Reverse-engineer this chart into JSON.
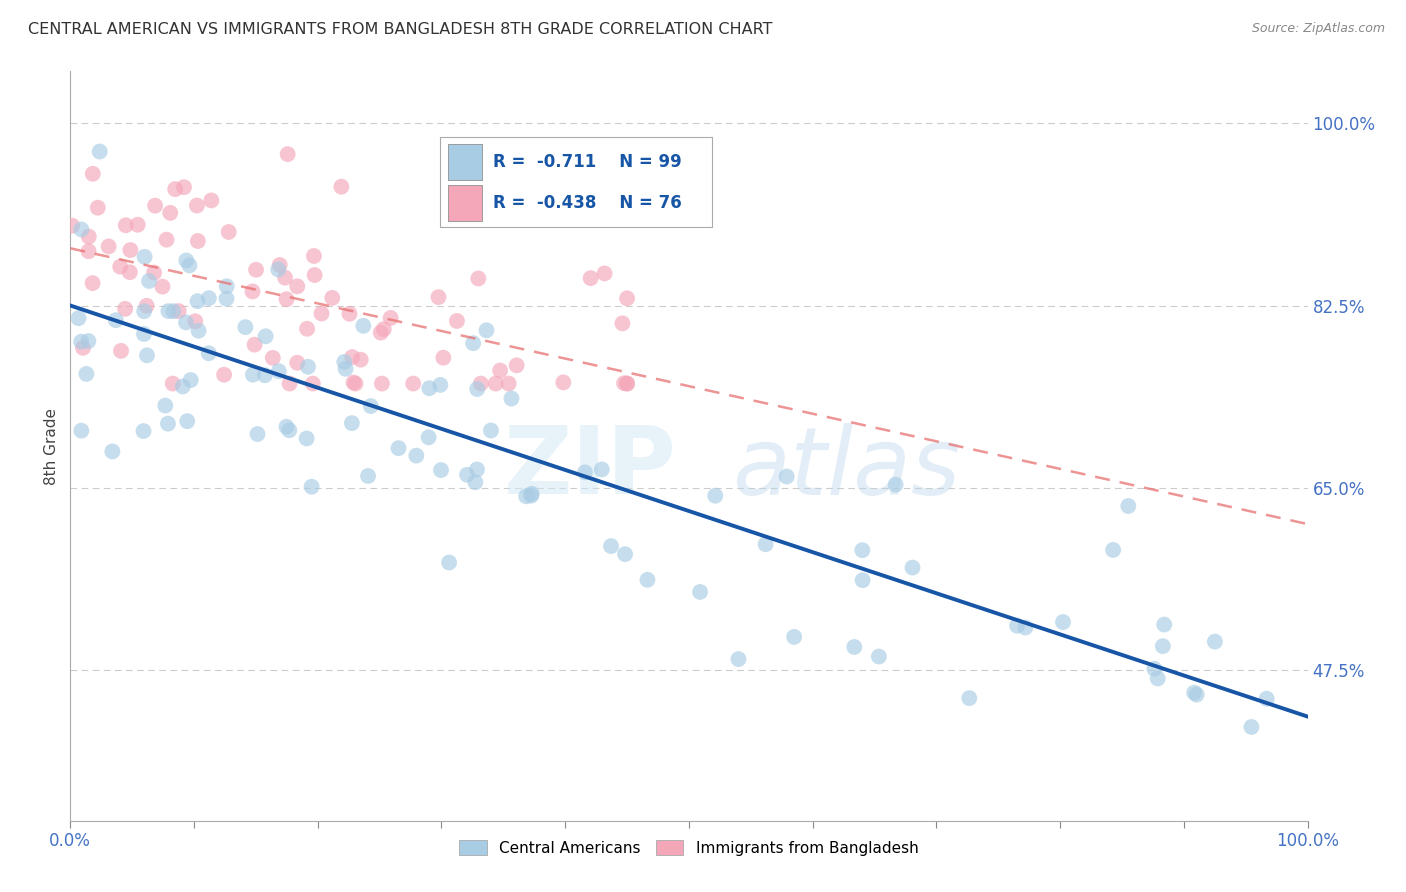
{
  "title": "CENTRAL AMERICAN VS IMMIGRANTS FROM BANGLADESH 8TH GRADE CORRELATION CHART",
  "source": "Source: ZipAtlas.com",
  "ylabel": "8th Grade",
  "watermark": "ZIPatlas",
  "legend_R_blue": "-0.711",
  "legend_N_blue": "99",
  "legend_R_pink": "-0.438",
  "legend_N_pink": "76",
  "blue_color": "#a8cce4",
  "pink_color": "#f4a7b9",
  "line_blue": "#1755a6",
  "line_pink": "#e87070",
  "xlim": [
    0.0,
    1.0
  ],
  "ylim": [
    0.33,
    1.05
  ],
  "ytick_vals": [
    0.475,
    0.65,
    0.825,
    1.0
  ],
  "ytick_labels": [
    "47.5%",
    "65.0%",
    "82.5%",
    "100.0%"
  ],
  "blue_line_x0": 0.0,
  "blue_line_y0": 0.825,
  "blue_line_x1": 1.0,
  "blue_line_y1": 0.43,
  "pink_line_x0": 0.0,
  "pink_line_y0": 0.88,
  "pink_line_x1": 1.0,
  "pink_line_y1": 0.615
}
